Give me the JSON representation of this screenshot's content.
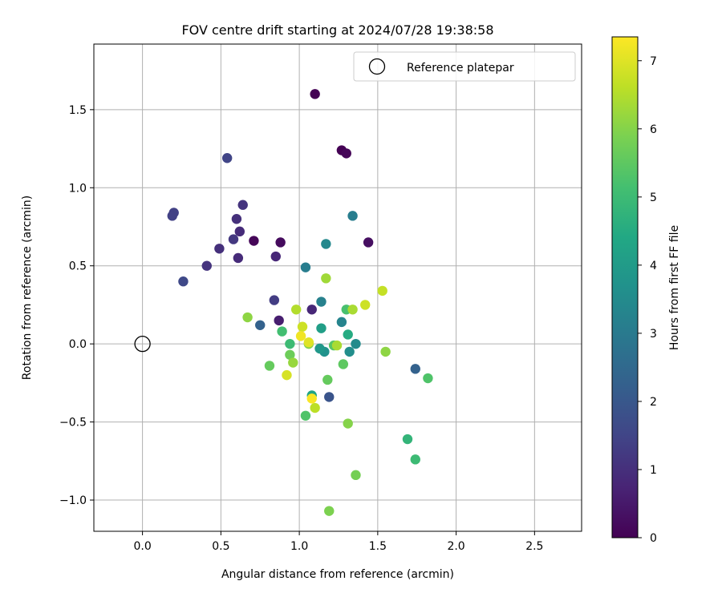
{
  "chart_data": {
    "type": "scatter",
    "title": "FOV centre drift starting at 2024/07/28 19:38:58",
    "xlabel": "Angular distance from reference (arcmin)",
    "ylabel": "Rotation from reference (arcmin)",
    "xlim": [
      -0.31,
      2.8
    ],
    "ylim": [
      -1.2,
      1.92
    ],
    "xticks": [
      0.0,
      0.5,
      1.0,
      1.5,
      2.0,
      2.5
    ],
    "xtick_labels": [
      "0.0",
      "0.5",
      "1.0",
      "1.5",
      "2.0",
      "2.5"
    ],
    "yticks": [
      -1.0,
      -0.5,
      0.0,
      0.5,
      1.0,
      1.5
    ],
    "ytick_labels": [
      "−1.0",
      "−0.5",
      "0.0",
      "0.5",
      "1.0",
      "1.5"
    ],
    "grid": true,
    "colormap": "viridis",
    "legend": {
      "position": "top-right",
      "entries": [
        "Reference platepar"
      ]
    },
    "reference_point": {
      "x": 0.0,
      "y": 0.0,
      "label": "Reference platepar"
    },
    "colorbar": {
      "label": "Hours from first FF file",
      "min": 0,
      "max": 7.35,
      "ticks": [
        0,
        1,
        2,
        3,
        4,
        5,
        6,
        7
      ],
      "tick_labels": [
        "0",
        "1",
        "2",
        "3",
        "4",
        "5",
        "6",
        "7"
      ]
    },
    "points": [
      {
        "x": 1.1,
        "y": 1.6,
        "hours": 0.0
      },
      {
        "x": 1.27,
        "y": 1.24,
        "hours": 0.0
      },
      {
        "x": 1.3,
        "y": 1.22,
        "hours": 0.1
      },
      {
        "x": 0.71,
        "y": 0.66,
        "hours": 0.1
      },
      {
        "x": 0.88,
        "y": 0.65,
        "hours": 0.2
      },
      {
        "x": 1.44,
        "y": 0.65,
        "hours": 0.3
      },
      {
        "x": 0.87,
        "y": 0.15,
        "hours": 0.6
      },
      {
        "x": 1.08,
        "y": 0.22,
        "hours": 0.8
      },
      {
        "x": 0.85,
        "y": 0.56,
        "hours": 0.8
      },
      {
        "x": 0.61,
        "y": 0.55,
        "hours": 0.9
      },
      {
        "x": 0.62,
        "y": 0.72,
        "hours": 0.9
      },
      {
        "x": 0.49,
        "y": 0.61,
        "hours": 1.0
      },
      {
        "x": 0.6,
        "y": 0.8,
        "hours": 1.0
      },
      {
        "x": 0.41,
        "y": 0.5,
        "hours": 1.1
      },
      {
        "x": 0.64,
        "y": 0.89,
        "hours": 1.1
      },
      {
        "x": 0.58,
        "y": 0.67,
        "hours": 1.2
      },
      {
        "x": 0.84,
        "y": 0.28,
        "hours": 1.3
      },
      {
        "x": 0.2,
        "y": 0.84,
        "hours": 1.4
      },
      {
        "x": 0.19,
        "y": 0.82,
        "hours": 1.4
      },
      {
        "x": 0.54,
        "y": 1.19,
        "hours": 1.5
      },
      {
        "x": 0.26,
        "y": 0.4,
        "hours": 1.6
      },
      {
        "x": 1.19,
        "y": -0.34,
        "hours": 1.9
      },
      {
        "x": 0.75,
        "y": 0.12,
        "hours": 2.3
      },
      {
        "x": 1.74,
        "y": -0.16,
        "hours": 2.3
      },
      {
        "x": 1.34,
        "y": 0.82,
        "hours": 3.1
      },
      {
        "x": 1.04,
        "y": 0.49,
        "hours": 3.1
      },
      {
        "x": 1.14,
        "y": 0.27,
        "hours": 3.2
      },
      {
        "x": 1.27,
        "y": 0.14,
        "hours": 3.3
      },
      {
        "x": 1.17,
        "y": 0.64,
        "hours": 3.4
      },
      {
        "x": 1.36,
        "y": 0.0,
        "hours": 3.5
      },
      {
        "x": 1.32,
        "y": -0.05,
        "hours": 3.6
      },
      {
        "x": 1.16,
        "y": -0.05,
        "hours": 3.7
      },
      {
        "x": 1.13,
        "y": -0.03,
        "hours": 3.9
      },
      {
        "x": 1.14,
        "y": 0.1,
        "hours": 4.1
      },
      {
        "x": 1.08,
        "y": -0.33,
        "hours": 4.3
      },
      {
        "x": 1.31,
        "y": 0.06,
        "hours": 4.5
      },
      {
        "x": 1.69,
        "y": -0.61,
        "hours": 4.8
      },
      {
        "x": 1.74,
        "y": -0.74,
        "hours": 5.0
      },
      {
        "x": 0.94,
        "y": 0.0,
        "hours": 5.0
      },
      {
        "x": 0.89,
        "y": 0.08,
        "hours": 5.1
      },
      {
        "x": 1.3,
        "y": 0.22,
        "hours": 5.2
      },
      {
        "x": 1.82,
        "y": -0.22,
        "hours": 5.3
      },
      {
        "x": 1.04,
        "y": -0.46,
        "hours": 5.3
      },
      {
        "x": 1.22,
        "y": -0.01,
        "hours": 5.4
      },
      {
        "x": 1.28,
        "y": -0.13,
        "hours": 5.5
      },
      {
        "x": 1.18,
        "y": -0.23,
        "hours": 5.6
      },
      {
        "x": 0.81,
        "y": -0.14,
        "hours": 5.6
      },
      {
        "x": 0.94,
        "y": -0.07,
        "hours": 5.7
      },
      {
        "x": 1.36,
        "y": -0.84,
        "hours": 5.8
      },
      {
        "x": 1.19,
        "y": -1.07,
        "hours": 5.9
      },
      {
        "x": 1.06,
        "y": 0.0,
        "hours": 6.0
      },
      {
        "x": 1.31,
        "y": -0.51,
        "hours": 6.0
      },
      {
        "x": 0.67,
        "y": 0.17,
        "hours": 6.1
      },
      {
        "x": 1.55,
        "y": -0.05,
        "hours": 6.1
      },
      {
        "x": 0.96,
        "y": -0.12,
        "hours": 6.2
      },
      {
        "x": 1.17,
        "y": 0.42,
        "hours": 6.3
      },
      {
        "x": 1.34,
        "y": 0.22,
        "hours": 6.4
      },
      {
        "x": 1.24,
        "y": -0.01,
        "hours": 6.4
      },
      {
        "x": 0.98,
        "y": 0.22,
        "hours": 6.5
      },
      {
        "x": 1.1,
        "y": -0.41,
        "hours": 6.6
      },
      {
        "x": 1.53,
        "y": 0.34,
        "hours": 6.7
      },
      {
        "x": 1.42,
        "y": 0.25,
        "hours": 6.8
      },
      {
        "x": 1.02,
        "y": 0.11,
        "hours": 6.8
      },
      {
        "x": 0.92,
        "y": -0.2,
        "hours": 6.9
      },
      {
        "x": 1.06,
        "y": 0.01,
        "hours": 7.0
      },
      {
        "x": 1.01,
        "y": 0.05,
        "hours": 7.2
      },
      {
        "x": 1.08,
        "y": -0.35,
        "hours": 7.3
      }
    ]
  }
}
